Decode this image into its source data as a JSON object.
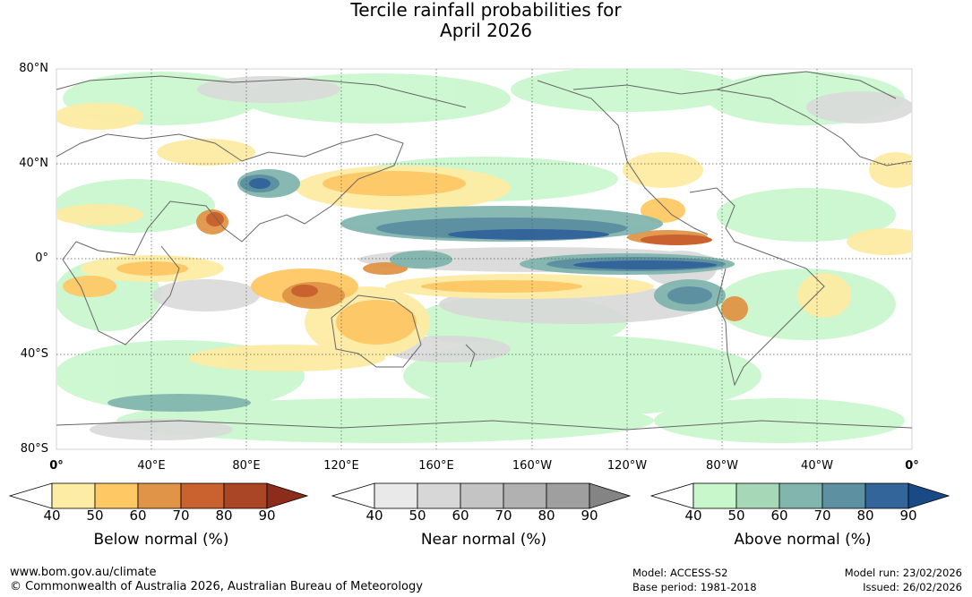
{
  "title": {
    "line1": "Tercile rainfall probabilities for",
    "line2": "April 2026"
  },
  "map": {
    "lat_labels": [
      "80°N",
      "40°N",
      "0°",
      "40°S",
      "80°S"
    ],
    "lon_labels": [
      "0°",
      "40°E",
      "80°E",
      "120°E",
      "160°E",
      "160°W",
      "120°W",
      "80°W",
      "40°W",
      "0°"
    ],
    "lat_range": [
      -80,
      80
    ],
    "lon_range_degrees_east": [
      0,
      360
    ]
  },
  "legends": [
    {
      "title": "Below normal (%)",
      "ticks": [
        "40",
        "50",
        "60",
        "70",
        "80",
        "90"
      ],
      "colors": [
        "#ffffff",
        "#fdeca3",
        "#fec865",
        "#e09447",
        "#c9622e",
        "#aa4625",
        "#8c2d1b"
      ]
    },
    {
      "title": "Near normal (%)",
      "ticks": [
        "40",
        "50",
        "60",
        "70",
        "80",
        "90"
      ],
      "colors": [
        "#ffffff",
        "#e9e9e9",
        "#d7d7d7",
        "#c4c4c4",
        "#b1b1b1",
        "#9f9f9f",
        "#848484"
      ]
    },
    {
      "title": "Above normal (%)",
      "ticks": [
        "40",
        "50",
        "60",
        "70",
        "80",
        "90"
      ],
      "colors": [
        "#ffffff",
        "#c8f7cc",
        "#a6d7b6",
        "#82b5ae",
        "#5d91a2",
        "#33649a",
        "#1a4a86"
      ]
    }
  ],
  "footer": {
    "url": "www.bom.gov.au/climate",
    "copyright": "© Commonwealth of Australia 2026, Australian Bureau of Meteorology",
    "model": "Model: ACCESS-S2",
    "base_period": "Base period: 1981-2018",
    "model_run": "Model run: 23/02/2026",
    "issued": "Issued: 26/02/2026"
  }
}
